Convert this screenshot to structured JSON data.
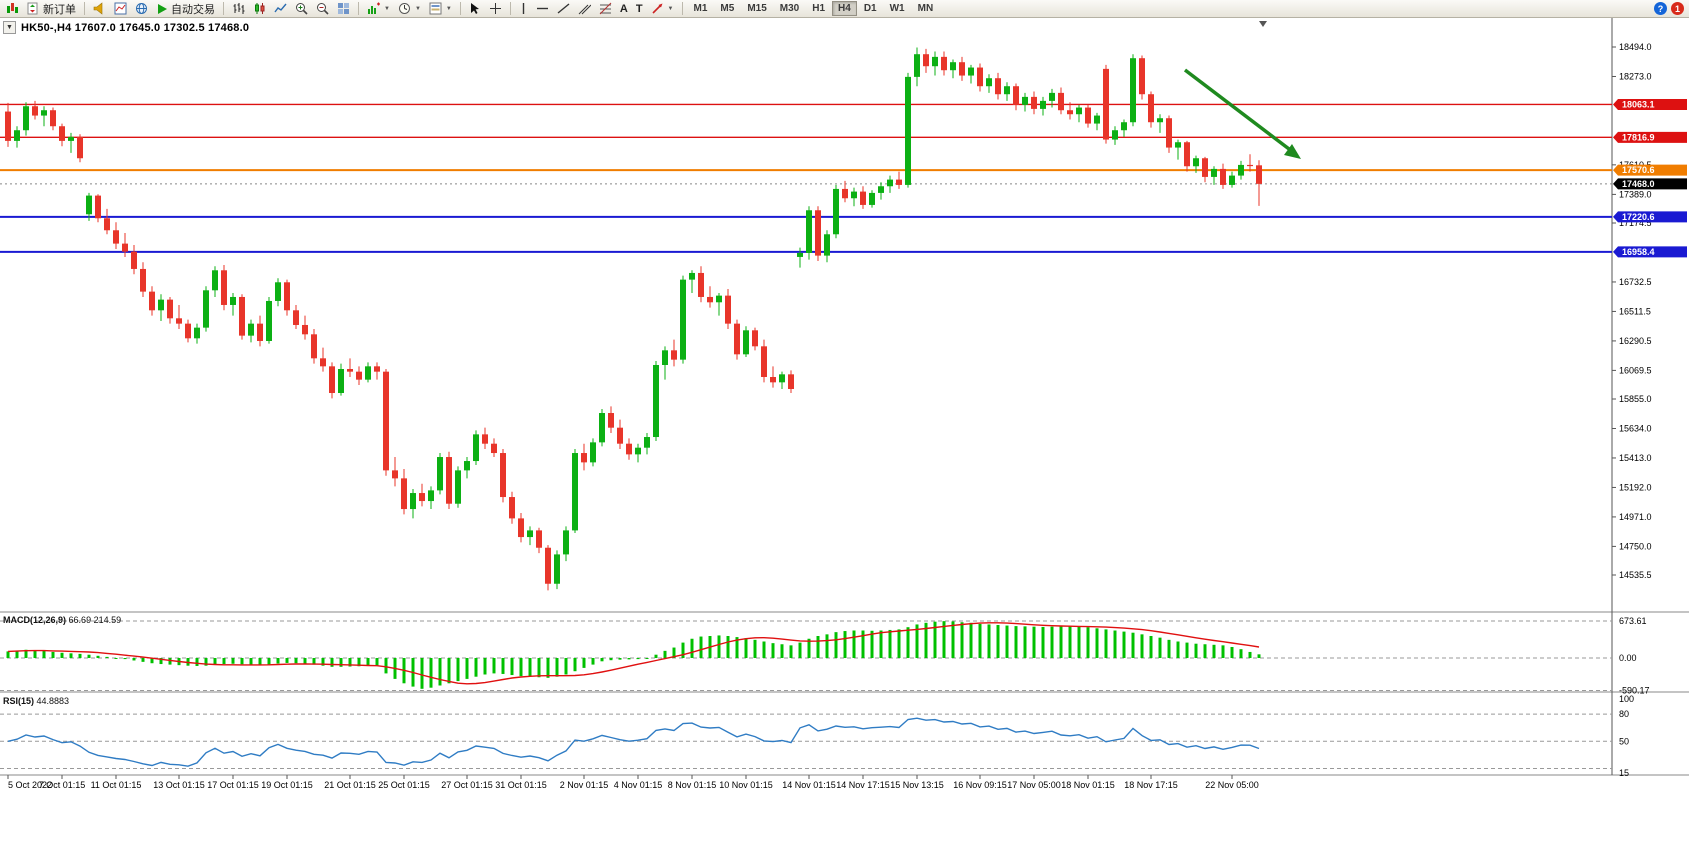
{
  "toolbar": {
    "new_order_label": "新订单",
    "autotrading_label": "自动交易",
    "timeframes": [
      "M1",
      "M5",
      "M15",
      "M30",
      "H1",
      "H4",
      "D1",
      "W1",
      "MN"
    ],
    "active_timeframe": "H4",
    "glyphs": {
      "collapse": "▼",
      "text_tool": "A",
      "label_tool": "T",
      "help": "?",
      "notifications": "1"
    }
  },
  "symbol_bar": {
    "text": "HK50-,H4  17607.0 17645.0 17302.5 17468.0"
  },
  "chart_data": {
    "type": "candlestick",
    "symbol": "HK50-",
    "timeframe": "H4",
    "ohlc_display": {
      "open": "17607.0",
      "high": "17645.0",
      "low": "17302.5",
      "close": "17468.0"
    },
    "price_lines": [
      {
        "v": 18063.1,
        "label": "18063.1",
        "color": "#dd1111",
        "w": 1.4,
        "style": "solid"
      },
      {
        "v": 17816.9,
        "label": "17816.9",
        "color": "#dd1111",
        "w": 1.4,
        "style": "solid"
      },
      {
        "v": 17570.6,
        "label": "17570.6",
        "color": "#f07d00",
        "w": 2,
        "style": "solid"
      },
      {
        "v": 17468.0,
        "label": "17468.0",
        "color": "#000000",
        "w": 1,
        "style": "current"
      },
      {
        "v": 17220.6,
        "label": "17220.6",
        "color": "#1a1ad2",
        "w": 2,
        "style": "solid"
      },
      {
        "v": 16958.4,
        "label": "16958.4",
        "color": "#1a1ad2",
        "w": 2,
        "style": "solid"
      }
    ],
    "y_ticks": [
      18494.0,
      18273.0,
      17610.5,
      17389.0,
      17174.5,
      16732.5,
      16511.5,
      16290.5,
      16069.5,
      15855.0,
      15634.0,
      15413.0,
      15192.0,
      14971.0,
      14750.0,
      14535.5
    ],
    "x_labels": [
      {
        "i": 0,
        "t": "5 Oct 2022"
      },
      {
        "i": 6,
        "t": "7 Oct 01:15"
      },
      {
        "i": 12,
        "t": "11 Oct 01:15"
      },
      {
        "i": 19,
        "t": "13 Oct 01:15"
      },
      {
        "i": 25,
        "t": "17 Oct 01:15"
      },
      {
        "i": 31,
        "t": "19 Oct 01:15"
      },
      {
        "i": 38,
        "t": "21 Oct 01:15"
      },
      {
        "i": 44,
        "t": "25 Oct 01:15"
      },
      {
        "i": 51,
        "t": "27 Oct 01:15"
      },
      {
        "i": 57,
        "t": "31 Oct 01:15"
      },
      {
        "i": 64,
        "t": "2 Nov 01:15"
      },
      {
        "i": 70,
        "t": "4 Nov 01:15"
      },
      {
        "i": 76,
        "t": "8 Nov 01:15"
      },
      {
        "i": 82,
        "t": "10 Nov 01:15"
      },
      {
        "i": 89,
        "t": "14 Nov 01:15"
      },
      {
        "i": 95,
        "t": "14 Nov 17:15"
      },
      {
        "i": 101,
        "t": "15 Nov 13:15"
      },
      {
        "i": 108,
        "t": "16 Nov 09:15"
      },
      {
        "i": 114,
        "t": "17 Nov 05:00"
      },
      {
        "i": 120,
        "t": "18 Nov 01:15"
      },
      {
        "i": 127,
        "t": "18 Nov 17:15"
      },
      {
        "i": 136,
        "t": "22 Nov 05:00"
      }
    ],
    "candles": [
      [
        18010,
        18075,
        17745,
        17790
      ],
      [
        17790,
        17900,
        17740,
        17870
      ],
      [
        17870,
        18080,
        17830,
        18050
      ],
      [
        18050,
        18090,
        17950,
        17980
      ],
      [
        17980,
        18050,
        17900,
        18020
      ],
      [
        18020,
        18040,
        17870,
        17900
      ],
      [
        17900,
        17920,
        17750,
        17790
      ],
      [
        17790,
        17850,
        17700,
        17820
      ],
      [
        17820,
        17840,
        17630,
        17660
      ],
      [
        17240,
        17400,
        17190,
        17380
      ],
      [
        17380,
        17390,
        17180,
        17210
      ],
      [
        17210,
        17280,
        17090,
        17120
      ],
      [
        17120,
        17180,
        16980,
        17020
      ],
      [
        17020,
        17100,
        16920,
        16960
      ],
      [
        16960,
        17010,
        16790,
        16830
      ],
      [
        16830,
        16880,
        16620,
        16660
      ],
      [
        16660,
        16700,
        16480,
        16520
      ],
      [
        16520,
        16640,
        16440,
        16600
      ],
      [
        16600,
        16620,
        16420,
        16460
      ],
      [
        16460,
        16560,
        16380,
        16420
      ],
      [
        16420,
        16450,
        16280,
        16310
      ],
      [
        16310,
        16420,
        16270,
        16390
      ],
      [
        16390,
        16700,
        16360,
        16670
      ],
      [
        16670,
        16850,
        16620,
        16820
      ],
      [
        16820,
        16860,
        16520,
        16560
      ],
      [
        16560,
        16650,
        16480,
        16620
      ],
      [
        16620,
        16640,
        16300,
        16330
      ],
      [
        16330,
        16450,
        16280,
        16420
      ],
      [
        16420,
        16480,
        16250,
        16290
      ],
      [
        16290,
        16620,
        16270,
        16590
      ],
      [
        16590,
        16760,
        16550,
        16730
      ],
      [
        16730,
        16750,
        16480,
        16520
      ],
      [
        16520,
        16560,
        16380,
        16410
      ],
      [
        16410,
        16480,
        16300,
        16340
      ],
      [
        16340,
        16380,
        16120,
        16160
      ],
      [
        16160,
        16240,
        16060,
        16100
      ],
      [
        16100,
        16130,
        15860,
        15900
      ],
      [
        15900,
        16120,
        15880,
        16080
      ],
      [
        16080,
        16160,
        16020,
        16060
      ],
      [
        16060,
        16100,
        15960,
        16000
      ],
      [
        16000,
        16130,
        15980,
        16100
      ],
      [
        16100,
        16130,
        16000,
        16060
      ],
      [
        16060,
        16080,
        15280,
        15320
      ],
      [
        15320,
        15420,
        15200,
        15260
      ],
      [
        15260,
        15330,
        14990,
        15030
      ],
      [
        15030,
        15180,
        14960,
        15150
      ],
      [
        15150,
        15220,
        15050,
        15090
      ],
      [
        15090,
        15200,
        15030,
        15170
      ],
      [
        15170,
        15450,
        15140,
        15420
      ],
      [
        15420,
        15460,
        15030,
        15070
      ],
      [
        15070,
        15350,
        15040,
        15320
      ],
      [
        15320,
        15420,
        15260,
        15390
      ],
      [
        15390,
        15620,
        15360,
        15590
      ],
      [
        15590,
        15640,
        15480,
        15520
      ],
      [
        15520,
        15560,
        15420,
        15450
      ],
      [
        15450,
        15480,
        15080,
        15120
      ],
      [
        15120,
        15160,
        14920,
        14960
      ],
      [
        14960,
        15000,
        14780,
        14820
      ],
      [
        14820,
        14900,
        14760,
        14870
      ],
      [
        14870,
        14890,
        14700,
        14740
      ],
      [
        14740,
        14760,
        14420,
        14470
      ],
      [
        14470,
        14720,
        14430,
        14690
      ],
      [
        14690,
        14900,
        14640,
        14870
      ],
      [
        14870,
        15480,
        14850,
        15450
      ],
      [
        15450,
        15520,
        15320,
        15380
      ],
      [
        15380,
        15560,
        15350,
        15530
      ],
      [
        15530,
        15780,
        15500,
        15750
      ],
      [
        15750,
        15800,
        15600,
        15640
      ],
      [
        15640,
        15700,
        15480,
        15520
      ],
      [
        15520,
        15560,
        15400,
        15440
      ],
      [
        15440,
        15520,
        15380,
        15490
      ],
      [
        15490,
        15600,
        15440,
        15570
      ],
      [
        15570,
        16140,
        15540,
        16110
      ],
      [
        16110,
        16250,
        16000,
        16220
      ],
      [
        16220,
        16300,
        16100,
        16150
      ],
      [
        16150,
        16780,
        16120,
        16750
      ],
      [
        16750,
        16820,
        16650,
        16800
      ],
      [
        16800,
        16850,
        16580,
        16620
      ],
      [
        16620,
        16700,
        16540,
        16580
      ],
      [
        16580,
        16650,
        16480,
        16630
      ],
      [
        16630,
        16680,
        16380,
        16420
      ],
      [
        16420,
        16450,
        16150,
        16190
      ],
      [
        16190,
        16400,
        16170,
        16370
      ],
      [
        16370,
        16390,
        16220,
        16250
      ],
      [
        16250,
        16300,
        15980,
        16020
      ],
      [
        16020,
        16100,
        15940,
        15980
      ],
      [
        15980,
        16060,
        15930,
        16040
      ],
      [
        16040,
        16070,
        15900,
        15930
      ],
      [
        16920,
        16990,
        16840,
        16950
      ],
      [
        16950,
        17300,
        16900,
        17270
      ],
      [
        17270,
        17300,
        16890,
        16930
      ],
      [
        16930,
        17120,
        16880,
        17090
      ],
      [
        17090,
        17460,
        17060,
        17430
      ],
      [
        17430,
        17490,
        17330,
        17360
      ],
      [
        17360,
        17440,
        17300,
        17410
      ],
      [
        17410,
        17450,
        17280,
        17310
      ],
      [
        17310,
        17420,
        17290,
        17400
      ],
      [
        17400,
        17480,
        17350,
        17450
      ],
      [
        17450,
        17530,
        17400,
        17500
      ],
      [
        17500,
        17560,
        17430,
        17460
      ],
      [
        17460,
        18300,
        17440,
        18270
      ],
      [
        18270,
        18490,
        18200,
        18440
      ],
      [
        18440,
        18480,
        18300,
        18350
      ],
      [
        18350,
        18460,
        18280,
        18420
      ],
      [
        18420,
        18460,
        18280,
        18320
      ],
      [
        18320,
        18400,
        18260,
        18380
      ],
      [
        18380,
        18420,
        18240,
        18280
      ],
      [
        18280,
        18360,
        18220,
        18340
      ],
      [
        18340,
        18370,
        18160,
        18200
      ],
      [
        18200,
        18290,
        18150,
        18260
      ],
      [
        18260,
        18300,
        18100,
        18140
      ],
      [
        18140,
        18230,
        18090,
        18200
      ],
      [
        18200,
        18220,
        18020,
        18060
      ],
      [
        18060,
        18150,
        18010,
        18120
      ],
      [
        18120,
        18160,
        17990,
        18030
      ],
      [
        18030,
        18120,
        17980,
        18090
      ],
      [
        18090,
        18180,
        18040,
        18150
      ],
      [
        18150,
        18190,
        17990,
        18020
      ],
      [
        18020,
        18080,
        17950,
        17990
      ],
      [
        17990,
        18060,
        17930,
        18040
      ],
      [
        18040,
        18060,
        17890,
        17920
      ],
      [
        17920,
        18000,
        17870,
        17980
      ],
      [
        18330,
        18360,
        17770,
        17800
      ],
      [
        17800,
        17900,
        17760,
        17870
      ],
      [
        17870,
        17950,
        17820,
        17930
      ],
      [
        17930,
        18440,
        17900,
        18410
      ],
      [
        18410,
        18430,
        18100,
        18140
      ],
      [
        18140,
        18160,
        17890,
        17930
      ],
      [
        17930,
        17990,
        17850,
        17960
      ],
      [
        17960,
        17980,
        17700,
        17740
      ],
      [
        17740,
        17800,
        17650,
        17780
      ],
      [
        17780,
        17790,
        17560,
        17600
      ],
      [
        17600,
        17680,
        17550,
        17660
      ],
      [
        17660,
        17670,
        17480,
        17520
      ],
      [
        17520,
        17600,
        17460,
        17580
      ],
      [
        17580,
        17620,
        17430,
        17460
      ],
      [
        17460,
        17560,
        17440,
        17530
      ],
      [
        17530,
        17640,
        17500,
        17610
      ],
      [
        17610,
        17690,
        17560,
        17607
      ],
      [
        17607,
        17645,
        17302.5,
        17468
      ]
    ]
  },
  "macd": {
    "label": "MACD(12,26,9)",
    "values_text": "66.69 214.59",
    "axis": [
      {
        "t": "673.61",
        "v": 673.61
      },
      {
        "t": "0.00",
        "v": 0
      },
      {
        "t": "-590.17",
        "v": -590.17
      }
    ],
    "hist": [
      120,
      130,
      150,
      140,
      130,
      110,
      95,
      85,
      75,
      60,
      40,
      20,
      0,
      -20,
      -45,
      -70,
      -95,
      -110,
      -120,
      -130,
      -140,
      -145,
      -140,
      -120,
      -110,
      -105,
      -115,
      -120,
      -130,
      -120,
      -100,
      -90,
      -95,
      -105,
      -120,
      -140,
      -160,
      -160,
      -155,
      -150,
      -140,
      -135,
      -280,
      -380,
      -460,
      -520,
      -560,
      -540,
      -500,
      -460,
      -420,
      -380,
      -340,
      -300,
      -280,
      -290,
      -310,
      -330,
      -340,
      -350,
      -360,
      -340,
      -300,
      -240,
      -180,
      -120,
      -60,
      -40,
      -30,
      -25,
      -20,
      0,
      60,
      130,
      190,
      280,
      350,
      390,
      400,
      410,
      400,
      380,
      360,
      330,
      300,
      270,
      250,
      230,
      280,
      350,
      400,
      430,
      470,
      490,
      500,
      500,
      495,
      500,
      510,
      520,
      560,
      610,
      640,
      660,
      670,
      665,
      650,
      640,
      620,
      610,
      600,
      590,
      580,
      575,
      570,
      565,
      570,
      575,
      580,
      570,
      560,
      540,
      520,
      500,
      480,
      460,
      430,
      400,
      370,
      330,
      300,
      280,
      260,
      250,
      240,
      230,
      200,
      160,
      110,
      66.69
    ]
  },
  "rsi": {
    "label": "RSI(15)",
    "value_text": "44.8883",
    "axis": [
      {
        "t": "100",
        "v": 100
      },
      {
        "t": "80",
        "v": 80
      },
      {
        "t": "50",
        "v": 50
      },
      {
        "t": "15",
        "v": 15
      }
    ],
    "levels": [
      80,
      50,
      20
    ]
  },
  "colors": {
    "bull": "#0cb014",
    "bear": "#e8352a",
    "macd_hist": "#00c000",
    "macd_signal": "#e01010",
    "rsi_line": "#2f7cc4",
    "arrow": "#1f8a1f",
    "axis_text": "#000000"
  }
}
